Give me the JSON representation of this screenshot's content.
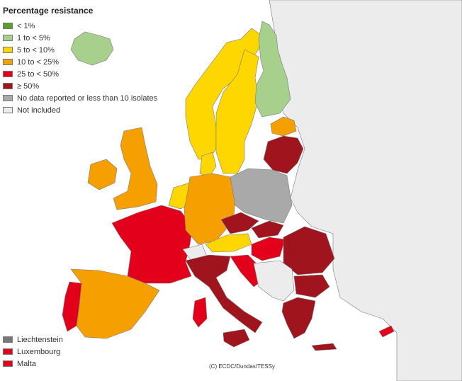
{
  "legend": {
    "title": "Percentage resistance",
    "items": [
      {
        "label": "< 1%",
        "color": "#5aa02c"
      },
      {
        "label": "1 to < 5%",
        "color": "#a8d08d"
      },
      {
        "label": "5 to < 10%",
        "color": "#ffd700"
      },
      {
        "label": "10 to < 25%",
        "color": "#f5a000"
      },
      {
        "label": "25 to < 50%",
        "color": "#e3001b"
      },
      {
        "label": "≥ 50%",
        "color": "#a0141e"
      },
      {
        "label": "No data reported or less than 10 isolates",
        "color": "#a9a9a9"
      },
      {
        "label": "Not included",
        "color": "#ececec"
      }
    ]
  },
  "small_countries": [
    {
      "label": "Liechtenstein",
      "color": "#777777"
    },
    {
      "label": "Luxembourg",
      "color": "#e3001b"
    },
    {
      "label": "Malta",
      "color": "#e3001b"
    }
  ],
  "credit": "(C) ECDC/Dundas/TESSy",
  "colors": {
    "sea": "#ffffff",
    "border": "#7a7a7a"
  }
}
